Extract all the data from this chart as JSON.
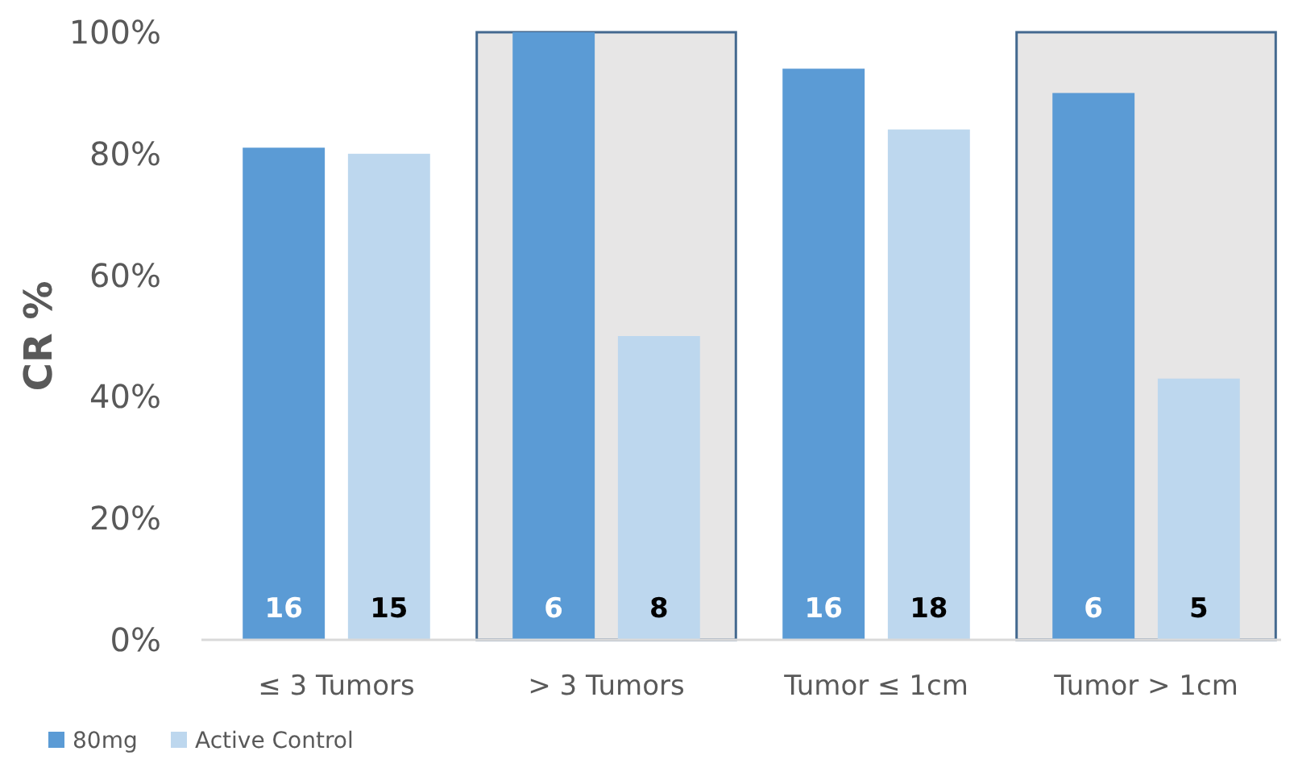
{
  "chart_data": {
    "type": "bar",
    "ylabel": "CR %",
    "categories": [
      "≤ 3 Tumors",
      "> 3 Tumors",
      "Tumor ≤ 1cm",
      "Tumor > 1cm"
    ],
    "series": [
      {
        "name": "80mg",
        "color": "#5b9bd5",
        "values": [
          81,
          100,
          94,
          90
        ]
      },
      {
        "name": "Active Control",
        "color": "#bdd7ee",
        "values": [
          80,
          50,
          84,
          43
        ]
      }
    ],
    "annotations": [
      "16",
      "15",
      "6",
      "8",
      "16",
      "18",
      "6",
      "5"
    ],
    "ylim": [
      0,
      100
    ],
    "yticks": [
      {
        "value": 0,
        "label": "0%"
      },
      {
        "value": 20,
        "label": "20%"
      },
      {
        "value": 40,
        "label": "40%"
      },
      {
        "value": 60,
        "label": "60%"
      },
      {
        "value": 80,
        "label": "80%"
      },
      {
        "value": 100,
        "label": "100%"
      }
    ],
    "bands": [
      {
        "axis": "x",
        "from": "> 3 Tumors",
        "to": "> 3 Tumors",
        "color": "#e7e6e6"
      },
      {
        "axis": "x",
        "from": "Tumor > 1cm",
        "to": "Tumor > 1cm",
        "color": "#e7e6e6"
      }
    ],
    "grid": false,
    "legend": "bottom left"
  }
}
